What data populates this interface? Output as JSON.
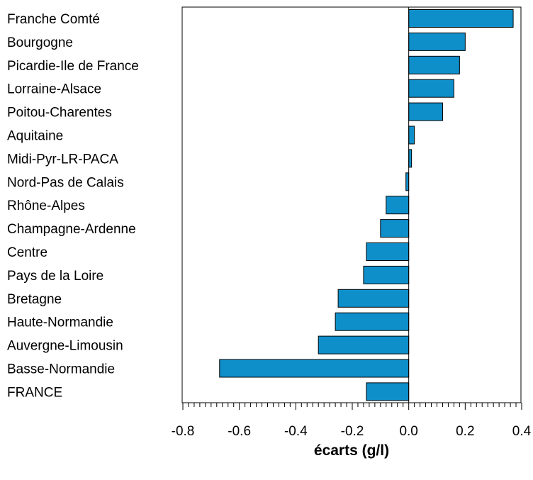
{
  "chart_data": {
    "type": "bar",
    "orientation": "horizontal",
    "categories": [
      "Franche Comté",
      "Bourgogne",
      "Picardie-Ile de France",
      "Lorraine-Alsace",
      "Poitou-Charentes",
      "Aquitaine",
      "Midi-Pyr-LR-PACA",
      "Nord-Pas de Calais",
      "Rhône-Alpes",
      "Champagne-Ardenne",
      "Centre",
      "Pays de la Loire",
      "Bretagne",
      "Haute-Normandie",
      "Auvergne-Limousin",
      "Basse-Normandie",
      "FRANCE"
    ],
    "values": [
      0.37,
      0.2,
      0.18,
      0.16,
      0.12,
      0.02,
      0.01,
      -0.01,
      -0.08,
      -0.1,
      -0.15,
      -0.16,
      -0.25,
      -0.26,
      -0.32,
      -0.67,
      -0.15
    ],
    "title": "",
    "xlabel": "écarts (g/l)",
    "ylabel": "",
    "xlim": [
      -0.8,
      0.4
    ],
    "xticks": [
      "-0.8",
      "-0.6",
      "-0.4",
      "-0.2",
      "0.0",
      "0.2",
      "0.4"
    ],
    "bar_color": "#0f8fca",
    "grid": false,
    "legend": "none"
  }
}
